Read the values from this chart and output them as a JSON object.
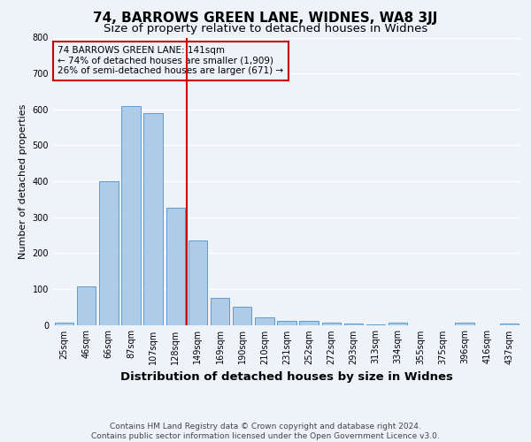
{
  "title": "74, BARROWS GREEN LANE, WIDNES, WA8 3JJ",
  "subtitle": "Size of property relative to detached houses in Widnes",
  "xlabel": "Distribution of detached houses by size in Widnes",
  "ylabel": "Number of detached properties",
  "categories": [
    "25sqm",
    "46sqm",
    "66sqm",
    "87sqm",
    "107sqm",
    "128sqm",
    "149sqm",
    "169sqm",
    "190sqm",
    "210sqm",
    "231sqm",
    "252sqm",
    "272sqm",
    "293sqm",
    "313sqm",
    "334sqm",
    "355sqm",
    "375sqm",
    "396sqm",
    "416sqm",
    "437sqm"
  ],
  "values": [
    5,
    107,
    400,
    610,
    590,
    325,
    235,
    75,
    50,
    20,
    12,
    10,
    5,
    3,
    1,
    5,
    0,
    0,
    7,
    0,
    3
  ],
  "bar_color": "#aecbe8",
  "bar_edgecolor": "#5b9bd5",
  "vline_index": 6,
  "vline_color": "#cc0000",
  "annotation_text": "74 BARROWS GREEN LANE: 141sqm\n← 74% of detached houses are smaller (1,909)\n26% of semi-detached houses are larger (671) →",
  "annotation_box_edgecolor": "#cc0000",
  "ylim": [
    0,
    800
  ],
  "yticks": [
    0,
    100,
    200,
    300,
    400,
    500,
    600,
    700,
    800
  ],
  "footnote": "Contains HM Land Registry data © Crown copyright and database right 2024.\nContains public sector information licensed under the Open Government Licence v3.0.",
  "background_color": "#eef2f9",
  "grid_color": "#ffffff",
  "title_fontsize": 11,
  "subtitle_fontsize": 9.5,
  "xlabel_fontsize": 9.5,
  "ylabel_fontsize": 8,
  "tick_fontsize": 7,
  "footnote_fontsize": 6.5,
  "annotation_fontsize": 7.5
}
